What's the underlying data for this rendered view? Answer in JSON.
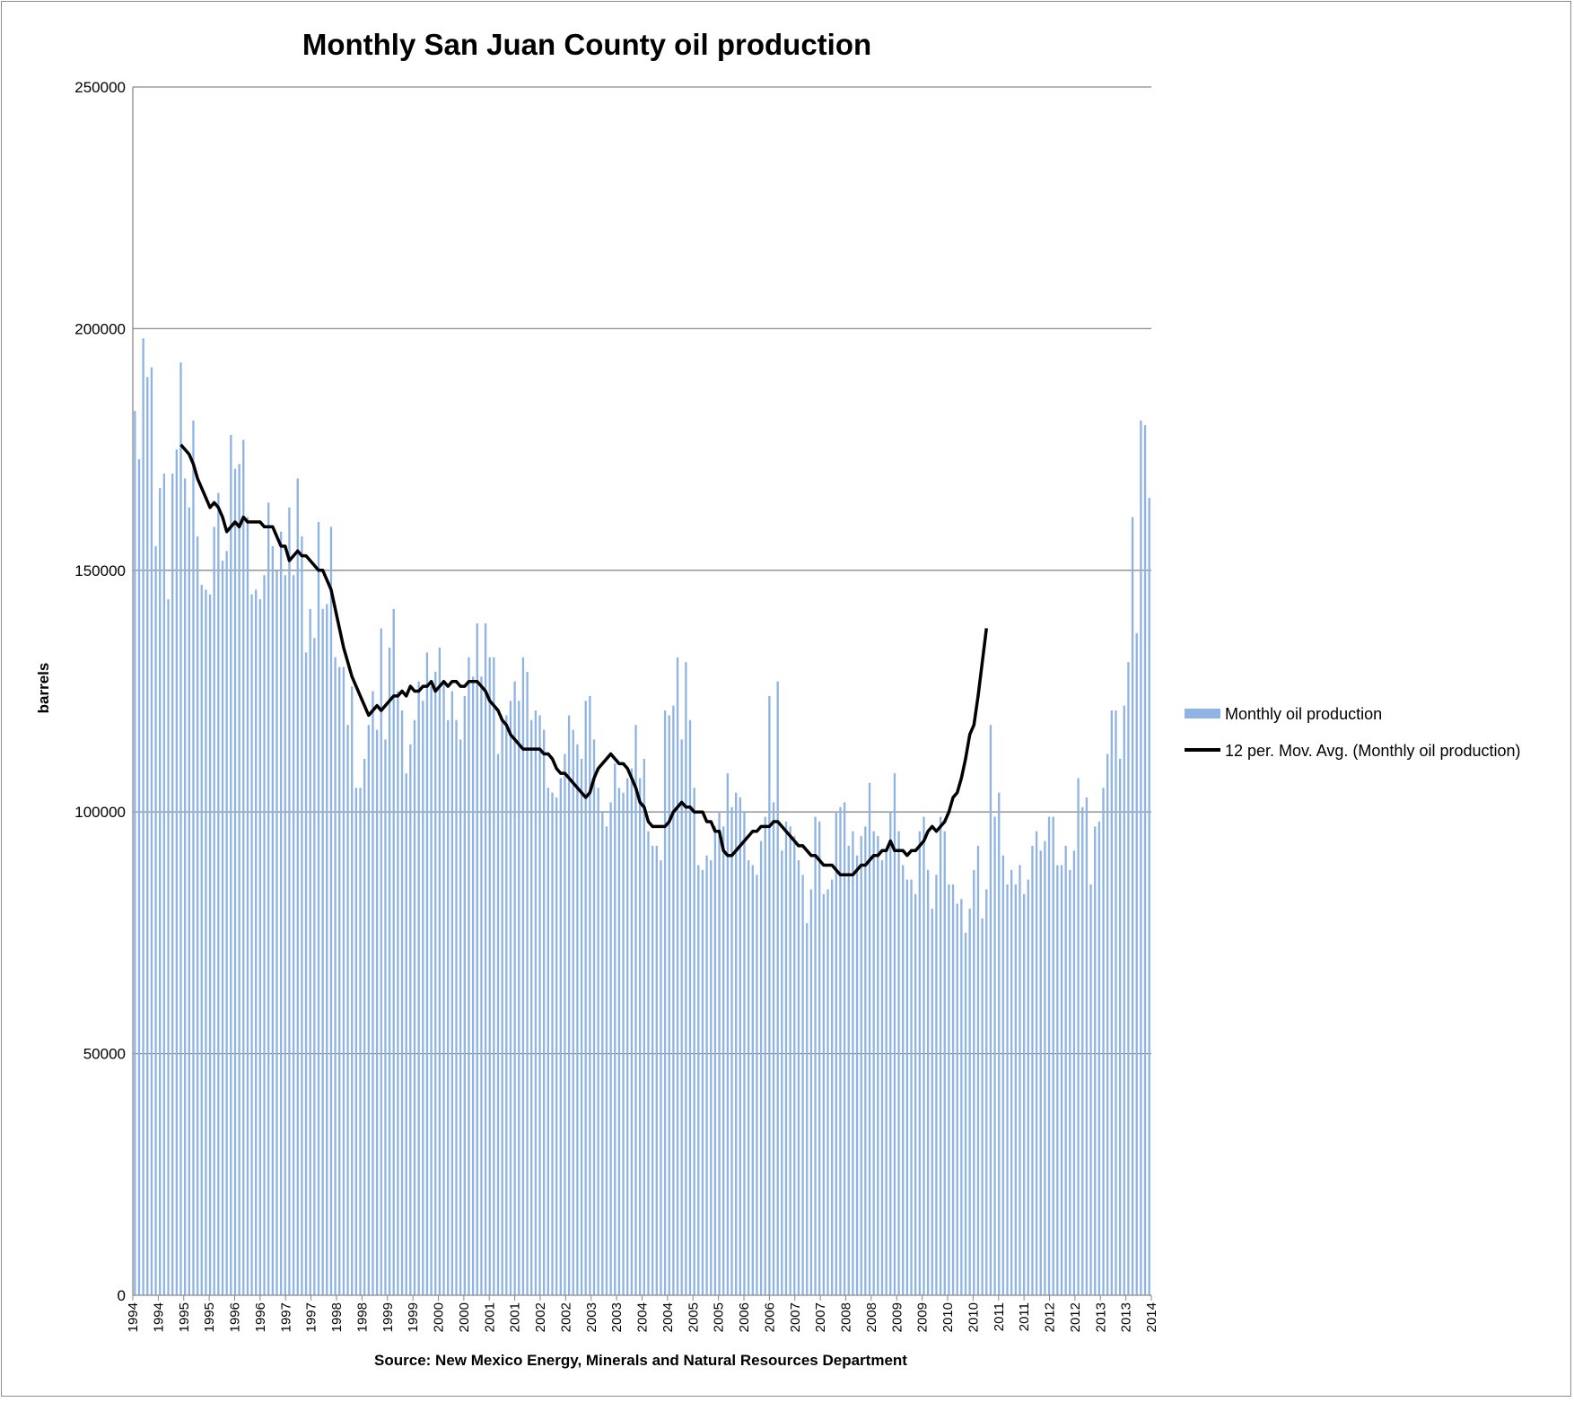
{
  "chart_data": {
    "type": "bar",
    "title": "Monthly San Juan County oil production",
    "ylabel": "barrels",
    "xlabel": "Source: New Mexico Energy, Minerals and Natural Resources Department",
    "ylim": [
      0,
      250000
    ],
    "yticks": [
      0,
      50000,
      100000,
      150000,
      200000,
      250000
    ],
    "grid": true,
    "legend_position": "right",
    "x_tick_labels": [
      "1994",
      "1994",
      "1995",
      "1995",
      "1996",
      "1996",
      "1997",
      "1997",
      "1998",
      "1998",
      "1999",
      "1999",
      "2000",
      "2000",
      "2001",
      "2001",
      "2002",
      "2002",
      "2003",
      "2003",
      "2004",
      "2004",
      "2005",
      "2005",
      "2006",
      "2006",
      "2007",
      "2007",
      "2008",
      "2008",
      "2009",
      "2009",
      "2010",
      "2010",
      "2011",
      "2011",
      "2012",
      "2012",
      "2013",
      "2013",
      "2014"
    ],
    "series": [
      {
        "name": "Monthly oil production",
        "kind": "bar",
        "color": "#8fb4e3",
        "values": [
          183000,
          173000,
          198000,
          190000,
          192000,
          155000,
          167000,
          170000,
          144000,
          170000,
          175000,
          193000,
          169000,
          163000,
          181000,
          157000,
          147000,
          146000,
          145000,
          159000,
          166000,
          152000,
          154000,
          178000,
          171000,
          172000,
          177000,
          161000,
          145000,
          146000,
          144000,
          149000,
          164000,
          155000,
          150000,
          158000,
          149000,
          163000,
          149000,
          169000,
          157000,
          133000,
          142000,
          136000,
          160000,
          142000,
          143000,
          159000,
          132000,
          130000,
          130000,
          118000,
          126000,
          105000,
          105000,
          111000,
          118000,
          125000,
          117000,
          138000,
          115000,
          134000,
          142000,
          125000,
          121000,
          108000,
          114000,
          119000,
          127000,
          123000,
          133000,
          126000,
          129000,
          134000,
          127000,
          119000,
          125000,
          119000,
          115000,
          124000,
          132000,
          128000,
          139000,
          128000,
          139000,
          132000,
          132000,
          112000,
          119000,
          120000,
          123000,
          127000,
          123000,
          132000,
          129000,
          119000,
          121000,
          120000,
          117000,
          105000,
          104000,
          103000,
          107000,
          112000,
          120000,
          117000,
          114000,
          111000,
          123000,
          124000,
          115000,
          105000,
          100000,
          97000,
          102000,
          110000,
          105000,
          104000,
          107000,
          109000,
          118000,
          107000,
          111000,
          96000,
          93000,
          93000,
          90000,
          121000,
          120000,
          122000,
          132000,
          115000,
          131000,
          119000,
          105000,
          89000,
          88000,
          91000,
          90000,
          97000,
          100000,
          97000,
          108000,
          101000,
          104000,
          103000,
          100000,
          90000,
          89000,
          87000,
          94000,
          99000,
          124000,
          102000,
          127000,
          92000,
          98000,
          97000,
          95000,
          90000,
          87000,
          77000,
          84000,
          99000,
          98000,
          83000,
          84000,
          86000,
          100000,
          101000,
          102000,
          93000,
          96000,
          91000,
          95000,
          97000,
          106000,
          96000,
          95000,
          90000,
          92000,
          100000,
          108000,
          96000,
          89000,
          86000,
          86000,
          83000,
          96000,
          99000,
          88000,
          80000,
          87000,
          99000,
          96000,
          85000,
          85000,
          81000,
          82000,
          75000,
          80000,
          88000,
          93000,
          78000,
          84000,
          118000,
          99000,
          104000,
          91000,
          85000,
          88000,
          85000,
          89000,
          83000,
          86000,
          93000,
          96000,
          92000,
          94000,
          99000,
          99000,
          89000,
          89000,
          93000,
          88000,
          92000,
          107000,
          101000,
          103000,
          85000,
          97000,
          98000,
          105000,
          112000,
          121000,
          121000,
          111000,
          122000,
          131000,
          161000,
          137000,
          181000,
          180000,
          165000
        ]
      },
      {
        "name": "12 per. Mov. Avg. (Monthly oil production)",
        "kind": "line",
        "color": "#000000",
        "start_index": 11,
        "values": [
          176000,
          175000,
          174000,
          172000,
          169000,
          167000,
          165000,
          163000,
          164000,
          163000,
          161000,
          158000,
          159000,
          160000,
          159000,
          161000,
          160000,
          160000,
          160000,
          160000,
          159000,
          159000,
          159000,
          157000,
          155000,
          155000,
          152000,
          153000,
          154000,
          153000,
          153000,
          152000,
          151000,
          150000,
          150000,
          148000,
          146000,
          142000,
          138000,
          134000,
          131000,
          128000,
          126000,
          124000,
          122000,
          120000,
          121000,
          122000,
          121000,
          122000,
          123000,
          124000,
          124000,
          125000,
          124000,
          126000,
          125000,
          125000,
          126000,
          126000,
          127000,
          125000,
          126000,
          127000,
          126000,
          127000,
          127000,
          126000,
          126000,
          127000,
          127000,
          127000,
          126000,
          125000,
          123000,
          122000,
          121000,
          119000,
          118000,
          116000,
          115000,
          114000,
          113000,
          113000,
          113000,
          113000,
          113000,
          112000,
          112000,
          111000,
          109000,
          108000,
          108000,
          107000,
          106000,
          105000,
          104000,
          103000,
          104000,
          107000,
          109000,
          110000,
          111000,
          112000,
          111000,
          110000,
          110000,
          109000,
          107000,
          105000,
          102000,
          101000,
          98000,
          97000,
          97000,
          97000,
          97000,
          98000,
          100000,
          101000,
          102000,
          101000,
          101000,
          100000,
          100000,
          100000,
          98000,
          98000,
          96000,
          96000,
          92000,
          91000,
          91000,
          92000,
          93000,
          94000,
          95000,
          96000,
          96000,
          97000,
          97000,
          97000,
          98000,
          98000,
          97000,
          96000,
          95000,
          94000,
          93000,
          93000,
          92000,
          91000,
          91000,
          90000,
          89000,
          89000,
          89000,
          88000,
          87000,
          87000,
          87000,
          87000,
          88000,
          89000,
          89000,
          90000,
          91000,
          91000,
          92000,
          92000,
          94000,
          92000,
          92000,
          92000,
          91000,
          92000,
          92000,
          93000,
          94000,
          96000,
          97000,
          96000,
          97000,
          98000,
          100000,
          103000,
          104000,
          107000,
          111000,
          116000,
          118000,
          124000,
          131000,
          138000
        ]
      }
    ]
  }
}
